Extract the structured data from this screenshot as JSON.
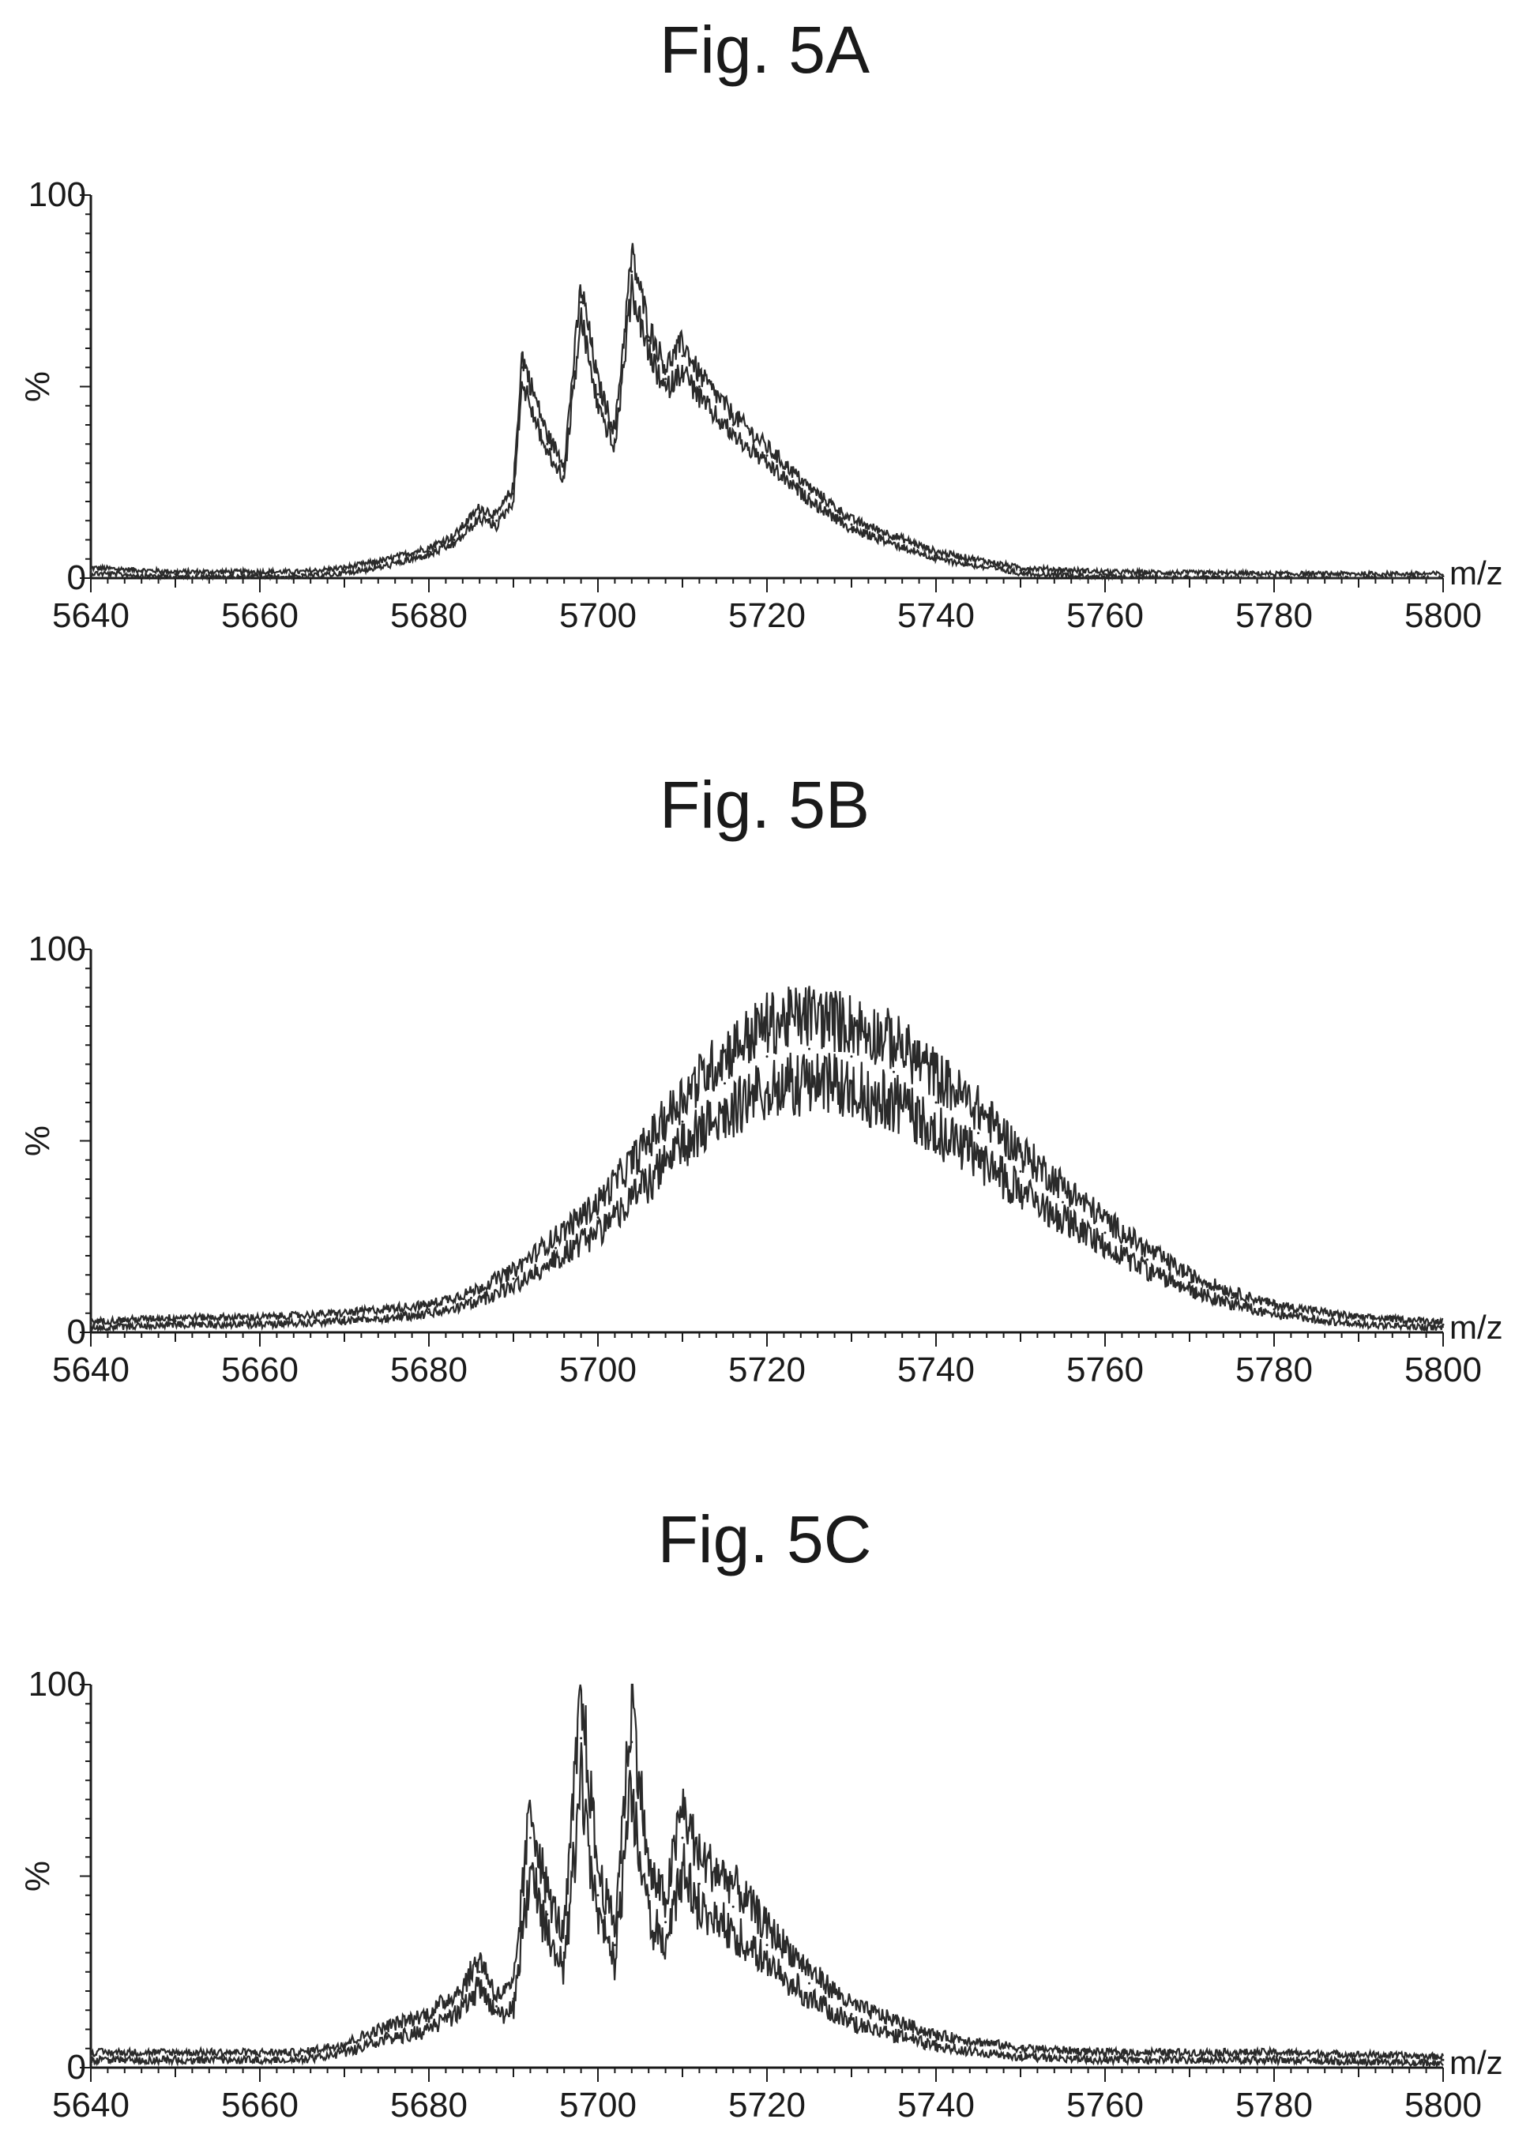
{
  "chart_data": [
    {
      "type": "line",
      "title": "Fig. 5A",
      "xlabel": "m/z",
      "ylabel": "%",
      "xlim": [
        5640,
        5800
      ],
      "ylim": [
        0,
        100
      ],
      "xticks": [
        "5640",
        "5660",
        "5680",
        "5700",
        "5720",
        "5740",
        "5760",
        "5780",
        "5800"
      ],
      "yticks": [
        "0",
        "100"
      ],
      "grid": false,
      "series": [
        {
          "x": [
            5640,
            5650,
            5660,
            5665,
            5670,
            5675,
            5680,
            5683,
            5686,
            5688,
            5690,
            5691,
            5692,
            5694,
            5696,
            5698,
            5700,
            5702,
            5704,
            5706,
            5708,
            5710,
            5712,
            5716,
            5720,
            5725,
            5730,
            5740,
            5750,
            5760,
            5780,
            5800
          ],
          "y": [
            2,
            1,
            1,
            1,
            2,
            4,
            7,
            10,
            17,
            15,
            22,
            55,
            48,
            35,
            28,
            72,
            48,
            36,
            80,
            62,
            52,
            58,
            50,
            40,
            32,
            22,
            14,
            6,
            2,
            1,
            0.5,
            0.5
          ]
        }
      ]
    },
    {
      "type": "line",
      "title": "Fig. 5B",
      "xlabel": "m/z",
      "ylabel": "%",
      "xlim": [
        5640,
        5800
      ],
      "ylim": [
        0,
        100
      ],
      "xticks": [
        "5640",
        "5660",
        "5680",
        "5700",
        "5720",
        "5740",
        "5760",
        "5780",
        "5800"
      ],
      "yticks": [
        "0",
        "100"
      ],
      "grid": false,
      "series": [
        {
          "x": [
            5640,
            5650,
            5660,
            5670,
            5680,
            5685,
            5690,
            5695,
            5700,
            5705,
            5710,
            5715,
            5720,
            5725,
            5730,
            5735,
            5740,
            5745,
            5750,
            5755,
            5760,
            5765,
            5770,
            5775,
            5780,
            5790,
            5800
          ],
          "y": [
            2,
            3,
            3,
            4,
            6,
            9,
            14,
            22,
            30,
            42,
            55,
            65,
            72,
            74,
            72,
            68,
            60,
            52,
            42,
            34,
            26,
            19,
            13,
            9,
            6,
            3,
            2
          ]
        }
      ]
    },
    {
      "type": "line",
      "title": "Fig. 5C",
      "xlabel": "m/z",
      "ylabel": "%",
      "xlim": [
        5640,
        5800
      ],
      "ylim": [
        0,
        100
      ],
      "xticks": [
        "5640",
        "5660",
        "5680",
        "5700",
        "5720",
        "5740",
        "5760",
        "5780",
        "5800"
      ],
      "yticks": [
        "0",
        "100"
      ],
      "grid": false,
      "series": [
        {
          "x": [
            5640,
            5650,
            5660,
            5665,
            5670,
            5675,
            5680,
            5684,
            5686,
            5688,
            5690,
            5692,
            5694,
            5696,
            5698,
            5700,
            5702,
            5704,
            5706,
            5708,
            5710,
            5712,
            5716,
            5720,
            5725,
            5730,
            5740,
            5750,
            5760,
            5780,
            5800
          ],
          "y": [
            3,
            3,
            3,
            3,
            5,
            9,
            12,
            18,
            25,
            16,
            18,
            60,
            40,
            30,
            86,
            45,
            32,
            85,
            45,
            38,
            60,
            48,
            42,
            32,
            22,
            14,
            7,
            4,
            3,
            3,
            2
          ]
        }
      ]
    }
  ]
}
